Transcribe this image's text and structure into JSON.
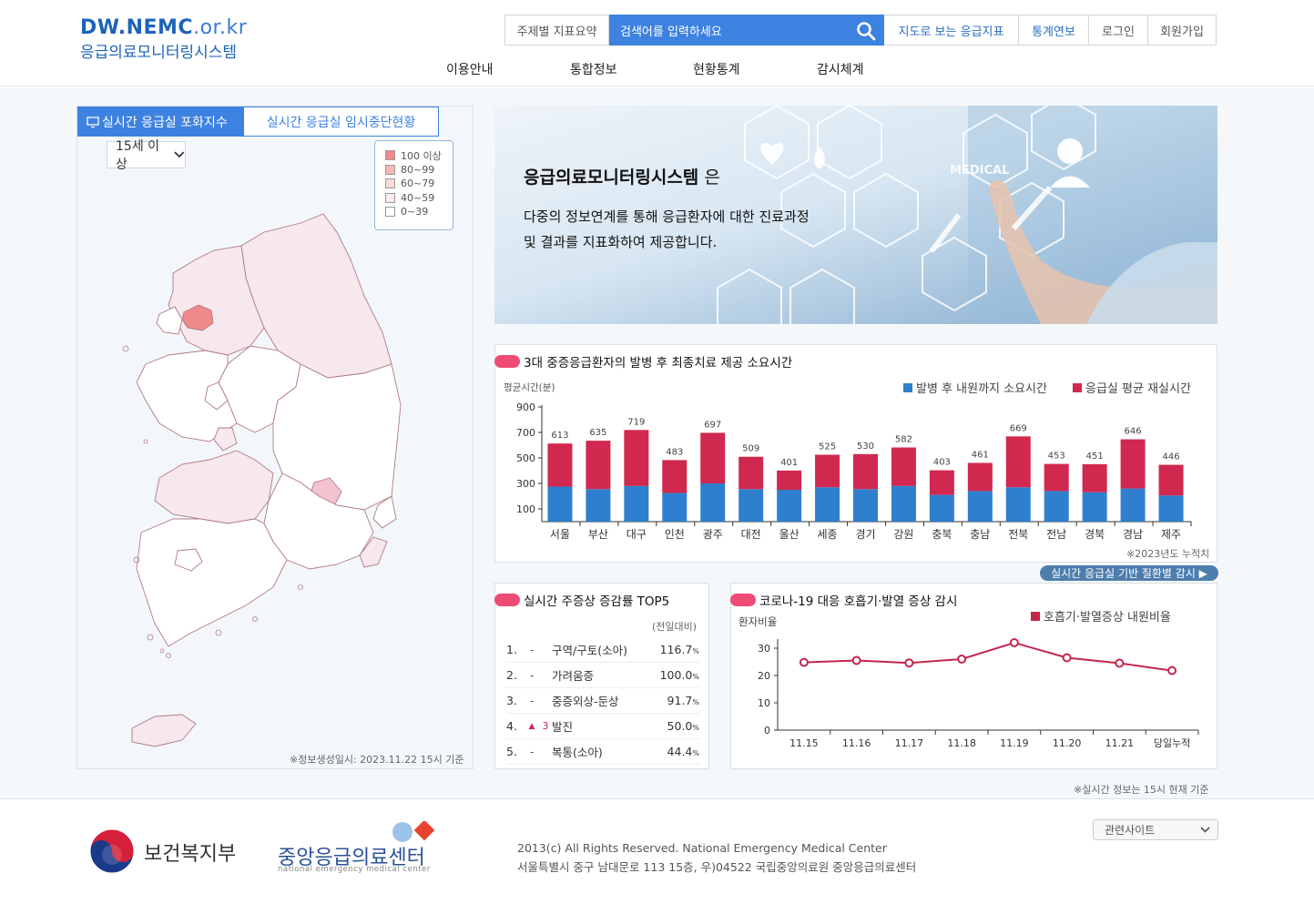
{
  "header": {
    "logo_main": "DW.NEMC",
    "logo_tld": ".or.kr",
    "logo_sub": "응급의료모니터링시스템",
    "summary_btn": "주제별 지표요약",
    "search_placeholder": "검색어를 입력하세요",
    "map_btn": "지도로 보는 응급지표",
    "stats_btn": "통계연보",
    "login": "로그인",
    "join": "회원가입",
    "nav": [
      "이용안내",
      "통합정보",
      "현황통계",
      "감시체계"
    ]
  },
  "left": {
    "tab_active": "실시간 응급실 포화지수",
    "tab_inactive": "실시간 응급실 임시중단현황",
    "age_select": "15세 이상",
    "legend": [
      {
        "label": "100 이상",
        "color": "#f08a8a"
      },
      {
        "label": "80~99",
        "color": "#f7b8b8"
      },
      {
        "label": "60~79",
        "color": "#fad9d9"
      },
      {
        "label": "40~59",
        "color": "#fcecec"
      },
      {
        "label": "0~39",
        "color": "#ffffff"
      }
    ],
    "note": "※정보생성일시: 2023.11.22 15시 기준"
  },
  "banner": {
    "title": "응급의료모니터링시스템",
    "title_suffix": " 은",
    "line1": "다중의 정보연계를 통해 응급환자에 대한 진료과정",
    "line2": "및 결과를 지표화하여 제공합니다.",
    "medical": "MEDICAL"
  },
  "chart_main": {
    "title": "3대 중증응급환자의 발병 후 최종치료 제공 소요시간",
    "note": "※2023년도 누적치",
    "link": "실시간 응급실 기반 질환별 감시 ▶"
  },
  "top5": {
    "title": "실시간 주증상 증감률 TOP5",
    "sub": "(전일대비)",
    "rows": [
      {
        "rank": "1.",
        "change": "-",
        "name": "구역/구토(소아)",
        "value": "116.7",
        "unit": "%"
      },
      {
        "rank": "2.",
        "change": "-",
        "name": "가려움증",
        "value": "100.0",
        "unit": "%"
      },
      {
        "rank": "3.",
        "change": "-",
        "name": "중증외상-둔상",
        "value": "91.7",
        "unit": "%"
      },
      {
        "rank": "4.",
        "change": "▲",
        "change_num": "3",
        "name": "발진",
        "value": "50.0",
        "unit": "%"
      },
      {
        "rank": "5.",
        "change": "-",
        "name": "복통(소아)",
        "value": "44.4",
        "unit": "%"
      }
    ]
  },
  "covid": {
    "title": "코로나-19 대응 호흡기·발열 증상 감시"
  },
  "realtime_note": "※실시간 정보는 15시 현재 기준",
  "footer": {
    "ministry": "보건복지부",
    "center": "중앙응급의료센터",
    "center_en": "national emergency medical center",
    "copyright": "2013(c) All Rights Reserved. National Emergency Medical Center",
    "address": "서울특별시 중구 남대문로 113 15층, 우)04522 국립중앙의료원 중앙응급의료센터",
    "related": "관련사이트"
  },
  "chart_data": [
    {
      "type": "bar",
      "title": "3대 중증응급환자의 발병 후 최종치료 제공 소요시간",
      "ylabel": "평균시간(분)",
      "ylim": [
        0,
        900
      ],
      "yticks": [
        100,
        300,
        500,
        700,
        900
      ],
      "categories": [
        "서울",
        "부산",
        "대구",
        "인천",
        "광주",
        "대전",
        "울산",
        "세종",
        "경기",
        "강원",
        "충북",
        "충남",
        "전북",
        "전남",
        "경북",
        "경남",
        "제주"
      ],
      "totals": [
        613,
        635,
        719,
        483,
        697,
        509,
        401,
        525,
        530,
        582,
        403,
        461,
        669,
        453,
        451,
        646,
        446
      ],
      "series": [
        {
          "name": "발병 후 내원까지 소요시간",
          "color": "#2f7fcf",
          "values": [
            275,
            255,
            280,
            225,
            300,
            255,
            250,
            270,
            255,
            280,
            210,
            240,
            270,
            240,
            230,
            260,
            205
          ]
        },
        {
          "name": "응급실 평균 재실시간",
          "color": "#d0284f",
          "values": [
            338,
            380,
            439,
            258,
            397,
            254,
            151,
            255,
            275,
            302,
            193,
            221,
            399,
            213,
            221,
            386,
            241
          ]
        }
      ],
      "legend": "top-right",
      "stacked": true
    },
    {
      "type": "line",
      "title": "코로나-19 대응 호흡기·발열 증상 감시",
      "ylabel": "환자비율",
      "ylim": [
        0,
        30
      ],
      "yticks": [
        0,
        10,
        20,
        30
      ],
      "categories": [
        "11.15",
        "11.16",
        "11.17",
        "11.18",
        "11.19",
        "11.20",
        "11.21",
        "당일누적"
      ],
      "series": [
        {
          "name": "호흡기·발열증상 내원비율",
          "color": "#c3264f",
          "values": [
            24.8,
            25.5,
            24.6,
            26.0,
            32.0,
            26.5,
            24.5,
            21.8
          ]
        }
      ],
      "legend": "top-right"
    }
  ]
}
